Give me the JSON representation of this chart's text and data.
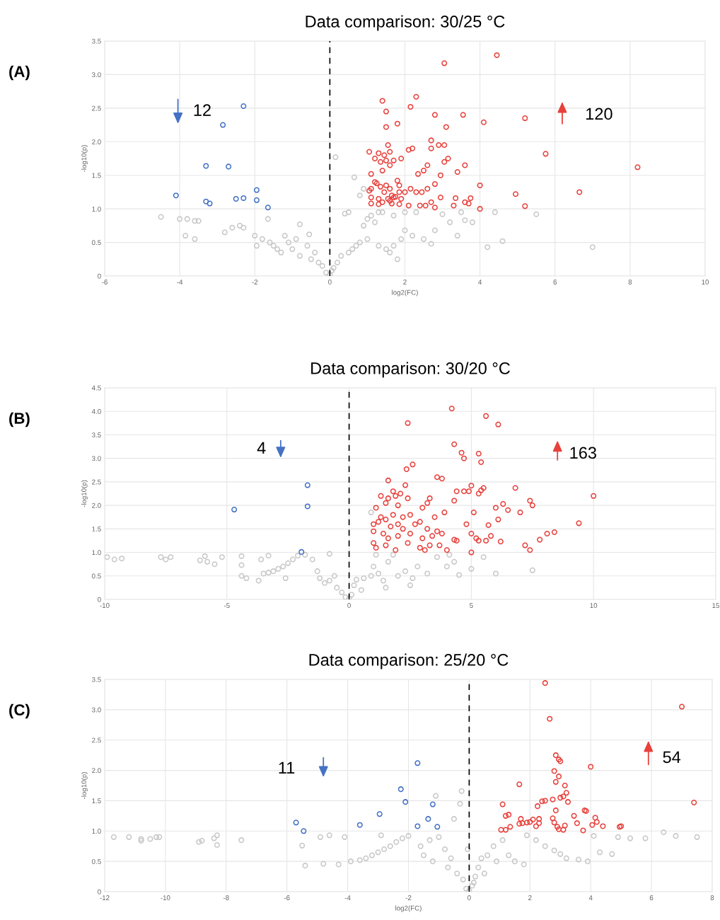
{
  "chart_data": [
    {
      "type": "scatter",
      "title": "Data comparison: 30/25 °C",
      "xlabel": "log2(FC)",
      "ylabel": "-log10(p)",
      "marker": "circle",
      "grid": true,
      "legend": false,
      "xlim": [
        -6,
        10
      ],
      "xticks": [
        -6,
        -4,
        -2,
        0,
        2,
        4,
        6,
        8,
        10
      ],
      "ylim": [
        0,
        3.5
      ],
      "yticks": [
        0,
        0.5,
        {
          "value": 1,
          "label": "1.0"
        },
        1.5,
        {
          "value": 2,
          "label": "2.0"
        },
        2.5,
        {
          "value": 3,
          "label": "3.0"
        },
        3.5
      ],
      "ref_lines": [
        {
          "axis": "x",
          "value": 0,
          "color": "#000000",
          "line_style": "dashed"
        }
      ],
      "annotations": [
        "(A)",
        "12",
        "120"
      ],
      "series": [
        {
          "color": "#c8c8c8",
          "x": [
            -4.5,
            -4.0,
            -3.8,
            -3.6,
            -3.5,
            -3.6,
            -3.85,
            -2.8,
            -2.6,
            -2.4,
            -2.3,
            -2.0,
            -1.95,
            -1.8,
            -1.65,
            -1.6,
            -1.5,
            -1.4,
            -1.3,
            -1.2,
            -1.1,
            -1.0,
            -0.9,
            -0.8,
            -0.8,
            -0.6,
            -0.55,
            -0.5,
            -0.4,
            -0.3,
            -0.2,
            -0.1,
            0.0,
            0.05,
            0.1,
            0.15,
            0.2,
            0.3,
            0.4,
            0.5,
            0.5,
            0.6,
            0.65,
            0.7,
            0.8,
            0.8,
            0.9,
            0.9,
            1.0,
            1.0,
            1.1,
            1.2,
            1.3,
            1.3,
            1.5,
            1.6,
            1.7,
            1.8,
            1.9,
            2.0,
            2.0,
            2.2,
            2.3,
            2.5,
            2.7,
            2.8,
            3.0,
            3.2,
            3.4,
            3.5,
            3.6,
            3.8,
            4.2,
            4.4,
            4.6,
            5.5,
            7.0,
            1.4,
            1.7
          ],
          "values": [
            0.88,
            0.85,
            0.85,
            0.82,
            0.82,
            0.55,
            0.6,
            0.65,
            0.72,
            0.75,
            0.72,
            0.6,
            0.45,
            0.55,
            0.85,
            0.5,
            0.45,
            0.4,
            0.35,
            0.6,
            0.5,
            0.4,
            0.55,
            0.77,
            0.3,
            0.45,
            0.62,
            0.25,
            0.35,
            0.2,
            0.15,
            0.05,
            0.02,
            0.08,
            0.12,
            1.77,
            0.2,
            0.3,
            0.93,
            0.95,
            0.35,
            0.4,
            1.47,
            0.45,
            0.5,
            1.2,
            0.75,
            1.3,
            0.85,
            0.55,
            0.9,
            0.8,
            0.95,
            0.45,
            0.4,
            0.35,
            0.45,
            0.25,
            0.55,
            0.95,
            0.68,
            0.6,
            0.95,
            0.55,
            0.48,
            0.68,
            0.92,
            0.8,
            0.6,
            0.95,
            0.83,
            0.8,
            0.43,
            0.95,
            0.52,
            0.92,
            0.43,
            0.95,
            0.9
          ]
        },
        {
          "color": "#4472c4",
          "x": [
            -4.1,
            -3.3,
            -3.3,
            -3.2,
            -2.85,
            -2.7,
            -2.5,
            -2.3,
            -2.3,
            -1.95,
            -1.95,
            -1.65
          ],
          "values": [
            1.2,
            1.64,
            1.11,
            1.08,
            2.25,
            1.63,
            1.15,
            2.53,
            1.16,
            1.28,
            1.13,
            1.02
          ]
        },
        {
          "color": "#e8413c",
          "x": [
            4.45,
            3.05,
            2.3,
            1.4,
            1.5,
            2.15,
            2.8,
            3.55,
            5.2,
            4.1,
            1.8,
            1.5,
            3.1,
            2.7,
            2.9,
            3.05,
            1.55,
            5.75,
            8.2,
            2.7,
            2.2,
            2.1,
            1.05,
            1.3,
            1.45,
            1.6,
            1.7,
            1.5,
            1.2,
            1.35,
            1.9,
            3.15,
            3.05,
            3.6,
            1.6,
            2.6,
            2.35,
            3.4,
            2.95,
            2.5,
            1.1,
            1.4,
            2.8,
            4.0,
            1.2,
            1.25,
            1.5,
            1.8,
            1.85,
            2.15,
            2.6,
            1.05,
            1.1,
            1.35,
            1.6,
            2.3,
            2.45,
            1.45,
            1.65,
            1.75,
            1.85,
            2.0,
            4.95,
            6.65,
            1.1,
            1.3,
            1.55,
            1.7,
            1.9,
            2.7,
            2.95,
            3.35,
            3.75,
            3.6,
            3.3,
            3.7,
            1.1,
            1.4,
            1.65,
            1.85,
            2.1,
            2.4,
            2.55,
            2.8,
            4.0,
            5.2,
            1.3,
            1.6
          ],
          "values": [
            3.29,
            3.17,
            2.67,
            2.61,
            2.45,
            2.52,
            2.4,
            2.4,
            2.35,
            2.29,
            2.27,
            2.22,
            2.22,
            2.02,
            1.95,
            1.95,
            1.95,
            1.82,
            1.62,
            1.9,
            1.9,
            1.88,
            1.85,
            1.83,
            1.8,
            1.85,
            1.72,
            1.72,
            1.75,
            1.7,
            1.75,
            1.75,
            1.7,
            1.65,
            1.65,
            1.65,
            1.52,
            1.55,
            1.5,
            1.57,
            1.52,
            1.57,
            1.37,
            1.35,
            1.4,
            1.38,
            1.35,
            1.42,
            1.35,
            1.3,
            1.3,
            1.27,
            1.3,
            1.33,
            1.3,
            1.25,
            1.25,
            1.25,
            1.2,
            1.18,
            1.25,
            1.25,
            1.22,
            1.25,
            1.17,
            1.15,
            1.15,
            1.17,
            1.15,
            1.1,
            1.17,
            1.16,
            1.16,
            1.1,
            1.05,
            1.08,
            1.08,
            1.1,
            1.08,
            1.07,
            1.05,
            1.05,
            1.05,
            1.02,
            1.0,
            1.04,
            1.07,
            1.12
          ]
        }
      ]
    },
    {
      "type": "scatter",
      "title": "Data comparison: 30/20 °C",
      "ylabel": "-log10(p)",
      "marker": "circle",
      "grid": true,
      "legend": false,
      "xlim": [
        -10,
        15
      ],
      "xticks": [
        -10,
        -5,
        0,
        5,
        10,
        15
      ],
      "ylim": [
        0,
        4.5
      ],
      "yticks": [
        0,
        0.5,
        {
          "value": 1,
          "label": "1.0"
        },
        1.5,
        {
          "value": 2,
          "label": "2.0"
        },
        2.5,
        {
          "value": 3,
          "label": "3.0"
        },
        3.5,
        {
          "value": 4,
          "label": "4.0"
        },
        4.5
      ],
      "ref_lines": [
        {
          "axis": "x",
          "value": 0,
          "color": "#000000",
          "line_style": "dashed"
        }
      ],
      "annotations": [
        "(B)",
        "4",
        "163"
      ],
      "series": [
        {
          "color": "#c8c8c8",
          "x": [
            -9.9,
            -9.6,
            -9.3,
            -7.7,
            -7.5,
            -7.3,
            -6.1,
            -5.9,
            -5.8,
            -5.5,
            -5.2,
            -4.4,
            -4.4,
            -4.4,
            -4.2,
            -3.6,
            -3.5,
            -3.3,
            -3.1,
            -2.9,
            -2.7,
            -2.5,
            -2.3,
            -2.1,
            -3.7,
            -3.3,
            -2.6,
            -1.8,
            -1.5,
            -1.3,
            -1.2,
            -1.0,
            -0.8,
            -0.8,
            -0.6,
            -0.5,
            -0.3,
            -0.15,
            0.0,
            0.1,
            0.2,
            0.3,
            0.5,
            0.6,
            0.9,
            0.9,
            1.0,
            1.1,
            1.2,
            1.4,
            1.6,
            1.8,
            2.0,
            2.3,
            2.6,
            2.8,
            3.2,
            3.6,
            4.0,
            4.1,
            4.5,
            4.3,
            5.0,
            5.5,
            6.0,
            7.5,
            2.5,
            1.5
          ],
          "values": [
            0.9,
            0.85,
            0.87,
            0.9,
            0.85,
            0.9,
            0.83,
            0.92,
            0.8,
            0.75,
            0.9,
            0.92,
            0.73,
            0.5,
            0.45,
            0.85,
            0.55,
            0.57,
            0.6,
            0.65,
            0.7,
            0.77,
            0.85,
            0.93,
            0.4,
            0.93,
            0.45,
            0.95,
            0.85,
            0.6,
            0.45,
            0.35,
            0.97,
            0.4,
            0.5,
            0.25,
            0.15,
            0.05,
            0.02,
            0.1,
            0.3,
            0.42,
            0.2,
            0.45,
            1.85,
            0.5,
            0.7,
            0.95,
            0.55,
            0.4,
            0.8,
            0.95,
            0.5,
            0.6,
            0.45,
            0.7,
            0.55,
            0.9,
            0.7,
            0.95,
            0.52,
            0.8,
            0.65,
            0.9,
            0.55,
            0.62,
            0.3,
            0.25
          ]
        },
        {
          "color": "#4472c4",
          "x": [
            -4.7,
            -1.7,
            -1.7,
            -1.95
          ],
          "values": [
            1.91,
            2.43,
            1.98,
            1.01
          ]
        },
        {
          "color": "#e8413c",
          "x": [
            4.2,
            5.6,
            6.1,
            2.4,
            4.3,
            4.6,
            4.7,
            5.3,
            5.4,
            2.6,
            2.35,
            3.6,
            3.8,
            1.6,
            5.0,
            2.3,
            5.5,
            6.8,
            4.4,
            4.7,
            4.9,
            5.3,
            5.4,
            1.3,
            1.6,
            1.8,
            1.9,
            2.1,
            2.4,
            3.3,
            10.0,
            4.3,
            7.4,
            7.5,
            6.3,
            6.0,
            1.5,
            2.0,
            3.0,
            3.2,
            3.9,
            6.5,
            7.0,
            5.1,
            1.1,
            1.3,
            1.5,
            1.8,
            2.2,
            2.5,
            2.7,
            2.9,
            3.5,
            1.0,
            1.2,
            1.7,
            2.0,
            2.2,
            3.2,
            3.6,
            4.8,
            5.7,
            6.1,
            9.4,
            1.0,
            1.4,
            1.6,
            2.0,
            2.5,
            3.0,
            3.4,
            3.8,
            5.0,
            5.2,
            5.8,
            8.1,
            8.4,
            1.0,
            1.1,
            1.5,
            1.9,
            2.4,
            2.9,
            3.3,
            3.7,
            4.3,
            4.4,
            5.0,
            5.3,
            5.6,
            6.2,
            7.2,
            7.8,
            7.4,
            4.0,
            3.1
          ],
          "values": [
            4.06,
            3.9,
            3.72,
            3.75,
            3.3,
            3.12,
            3.0,
            3.1,
            2.92,
            2.87,
            2.77,
            2.6,
            2.57,
            2.53,
            2.42,
            2.43,
            2.37,
            2.37,
            2.3,
            2.3,
            2.3,
            2.25,
            2.32,
            2.2,
            2.15,
            2.3,
            2.2,
            2.25,
            2.15,
            2.15,
            2.2,
            2.1,
            2.1,
            2.0,
            2.03,
            1.95,
            2.05,
            2.0,
            1.95,
            2.05,
            1.85,
            1.9,
            1.85,
            1.85,
            1.95,
            1.75,
            1.7,
            1.8,
            1.75,
            1.8,
            1.6,
            1.65,
            1.75,
            1.6,
            1.65,
            1.55,
            1.6,
            1.5,
            1.5,
            1.45,
            1.6,
            1.58,
            1.7,
            1.62,
            1.45,
            1.4,
            1.3,
            1.35,
            1.4,
            1.3,
            1.35,
            1.4,
            1.4,
            1.3,
            1.35,
            1.4,
            1.43,
            1.2,
            1.1,
            1.15,
            1.05,
            1.2,
            1.1,
            1.15,
            1.15,
            1.27,
            1.25,
            1.0,
            1.25,
            1.25,
            1.23,
            1.15,
            1.27,
            1.05,
            1.05,
            1.05
          ]
        }
      ]
    },
    {
      "type": "scatter",
      "title": "Data comparison: 25/20 °C",
      "xlabel": "log2(FC)",
      "ylabel": "-log10(p)",
      "marker": "circle",
      "grid": true,
      "legend": false,
      "xlim": [
        -12,
        8
      ],
      "xticks": [
        -12,
        -10,
        -8,
        -6,
        -4,
        -2,
        0,
        2,
        4,
        6,
        8
      ],
      "ylim": [
        0,
        3.5
      ],
      "yticks": [
        0,
        0.5,
        {
          "value": 1,
          "label": "1.0"
        },
        1.5,
        {
          "value": 2,
          "label": "2.0"
        },
        2.5,
        {
          "value": 3,
          "label": "3.0"
        },
        3.5
      ],
      "ref_lines": [
        {
          "axis": "x",
          "value": 0,
          "color": "#000000",
          "line_style": "dashed"
        }
      ],
      "annotations": [
        "(C)",
        "11",
        "54"
      ],
      "series": [
        {
          "color": "#c8c8c8",
          "x": [
            -11.7,
            -11.2,
            -10.8,
            -10.8,
            -10.5,
            -10.3,
            -10.2,
            -8.9,
            -8.8,
            -8.4,
            -8.3,
            -8.3,
            -7.5,
            -5.5,
            -5.4,
            -4.9,
            -4.8,
            -4.6,
            -4.3,
            -4.1,
            -3.9,
            -3.6,
            -3.4,
            -3.2,
            -3.0,
            -2.8,
            -2.6,
            -2.4,
            -2.2,
            -2.0,
            -2.9,
            -1.6,
            -1.5,
            -1.3,
            -1.1,
            -1.2,
            -1.0,
            -0.8,
            -0.7,
            -0.6,
            -0.5,
            -0.4,
            -0.3,
            -0.25,
            -0.2,
            -0.1,
            0.0,
            0.1,
            0.2,
            0.3,
            0.4,
            0.5,
            0.6,
            0.8,
            0.9,
            1.1,
            1.3,
            1.5,
            1.8,
            1.9,
            2.2,
            2.5,
            2.8,
            3.0,
            3.2,
            3.6,
            3.9,
            4.1,
            4.3,
            4.7,
            4.9,
            5.3,
            5.8,
            6.4,
            6.8,
            7.5,
            -0.05,
            0.15
          ],
          "values": [
            0.9,
            0.9,
            0.87,
            0.84,
            0.87,
            0.9,
            0.9,
            0.82,
            0.84,
            0.88,
            0.93,
            0.77,
            0.85,
            0.76,
            0.43,
            0.9,
            0.46,
            0.93,
            0.45,
            0.9,
            0.5,
            0.52,
            0.55,
            0.6,
            0.65,
            0.7,
            0.75,
            0.82,
            0.88,
            0.92,
            0.93,
            0.75,
            0.6,
            0.85,
            1.58,
            0.5,
            0.9,
            0.7,
            0.4,
            0.55,
            1.2,
            0.3,
            1.45,
            1.66,
            0.2,
            0.05,
            0.02,
            0.1,
            0.25,
            0.4,
            0.55,
            0.3,
            0.6,
            0.75,
            0.5,
            0.85,
            0.6,
            0.5,
            0.45,
            0.93,
            0.85,
            0.75,
            0.68,
            0.62,
            0.55,
            0.53,
            0.5,
            0.92,
            0.65,
            0.62,
            0.9,
            0.88,
            0.88,
            0.98,
            0.92,
            0.9,
            0.7,
            0.15
          ]
        },
        {
          "color": "#4472c4",
          "x": [
            -5.7,
            -5.45,
            -3.6,
            -2.95,
            -2.25,
            -2.1,
            -1.7,
            -1.7,
            -1.35,
            -1.2,
            -1.05
          ],
          "values": [
            1.14,
            1.0,
            1.1,
            1.28,
            1.69,
            1.48,
            2.12,
            1.08,
            1.2,
            1.44,
            1.07
          ]
        },
        {
          "color": "#e8413c",
          "x": [
            2.5,
            2.65,
            7.0,
            7.4,
            2.85,
            2.95,
            3.0,
            4.0,
            2.8,
            2.95,
            2.85,
            3.15,
            1.65,
            3.2,
            3.1,
            3.0,
            3.25,
            2.4,
            2.5,
            2.75,
            1.1,
            2.25,
            3.8,
            3.85,
            2.85,
            1.2,
            1.3,
            2.75,
            4.15,
            3.45,
            2.1,
            1.7,
            1.75,
            1.65,
            1.9,
            2.0,
            2.3,
            2.2,
            1.35,
            1.05,
            1.2,
            2.9,
            2.95,
            3.15,
            3.55,
            3.75,
            4.05,
            4.2,
            4.4,
            4.95,
            5.0,
            2.8,
            3.1,
            2.3
          ],
          "values": [
            3.44,
            2.85,
            3.05,
            1.47,
            2.25,
            2.18,
            2.15,
            2.06,
            1.99,
            1.9,
            1.81,
            1.75,
            1.77,
            1.63,
            1.57,
            1.55,
            1.48,
            1.49,
            1.5,
            1.52,
            1.44,
            1.41,
            1.34,
            1.33,
            1.34,
            1.25,
            1.27,
            1.21,
            1.22,
            1.25,
            1.19,
            1.2,
            1.13,
            1.12,
            1.14,
            1.15,
            1.13,
            1.08,
            1.07,
            1.02,
            1.02,
            1.07,
            1.03,
            1.09,
            1.13,
            1.01,
            1.1,
            1.15,
            1.08,
            1.07,
            1.08,
            1.14,
            1.02,
            1.2
          ]
        }
      ]
    }
  ]
}
